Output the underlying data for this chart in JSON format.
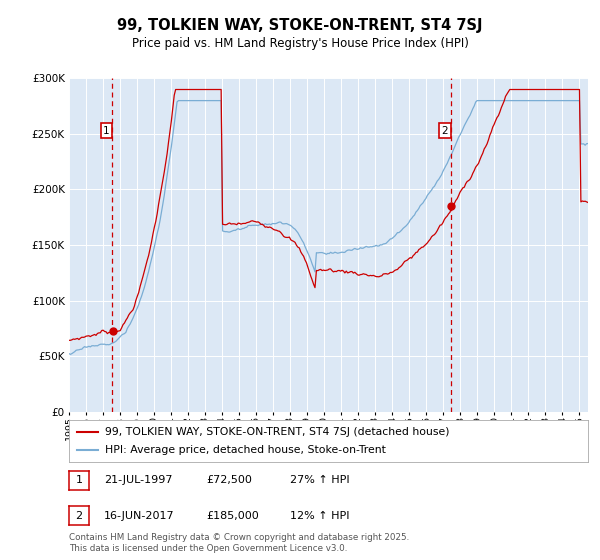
{
  "title": "99, TOLKIEN WAY, STOKE-ON-TRENT, ST4 7SJ",
  "subtitle": "Price paid vs. HM Land Registry's House Price Index (HPI)",
  "legend_line1": "99, TOLKIEN WAY, STOKE-ON-TRENT, ST4 7SJ (detached house)",
  "legend_line2": "HPI: Average price, detached house, Stoke-on-Trent",
  "annotation1_label": "1",
  "annotation1_date": "21-JUL-1997",
  "annotation1_price": "£72,500",
  "annotation1_hpi": "27% ↑ HPI",
  "annotation2_label": "2",
  "annotation2_date": "16-JUN-2017",
  "annotation2_price": "£185,000",
  "annotation2_hpi": "12% ↑ HPI",
  "footer": "Contains HM Land Registry data © Crown copyright and database right 2025.\nThis data is licensed under the Open Government Licence v3.0.",
  "sale1_year": 1997.55,
  "sale1_price": 72500,
  "sale2_year": 2017.45,
  "sale2_price": 185000,
  "red_color": "#cc0000",
  "blue_color": "#7aadd4",
  "plot_bg": "#dce8f5",
  "vline_color": "#cc0000",
  "ylim_max": 300000,
  "ylim_min": 0,
  "xlim_min": 1995.0,
  "xlim_max": 2025.5
}
